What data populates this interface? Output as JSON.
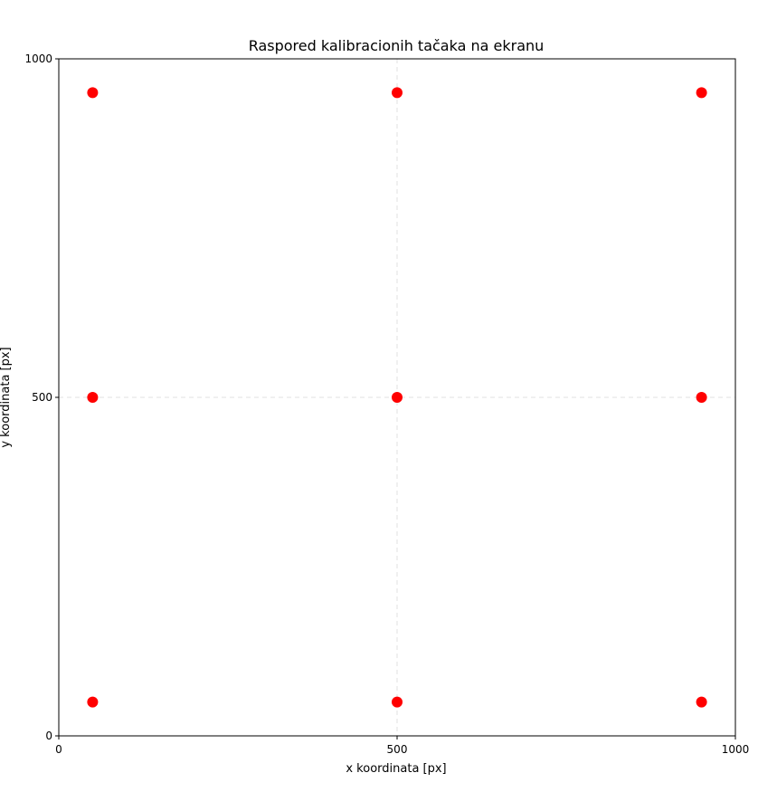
{
  "chart_data": {
    "type": "scatter",
    "title": "Raspored kalibracionih tačaka na ekranu",
    "xlabel": "x koordinata [px]",
    "ylabel": "y koordinata [px]",
    "xlim": [
      0,
      1000
    ],
    "ylim": [
      0,
      1000
    ],
    "xticks": [
      0,
      500,
      1000
    ],
    "yticks": [
      0,
      500,
      1000
    ],
    "grid": true,
    "point_color": "#ff0000",
    "points": [
      {
        "x": 50,
        "y": 950
      },
      {
        "x": 500,
        "y": 950
      },
      {
        "x": 950,
        "y": 950
      },
      {
        "x": 50,
        "y": 500
      },
      {
        "x": 500,
        "y": 500
      },
      {
        "x": 950,
        "y": 500
      },
      {
        "x": 50,
        "y": 50
      },
      {
        "x": 500,
        "y": 50
      },
      {
        "x": 950,
        "y": 50
      }
    ]
  }
}
